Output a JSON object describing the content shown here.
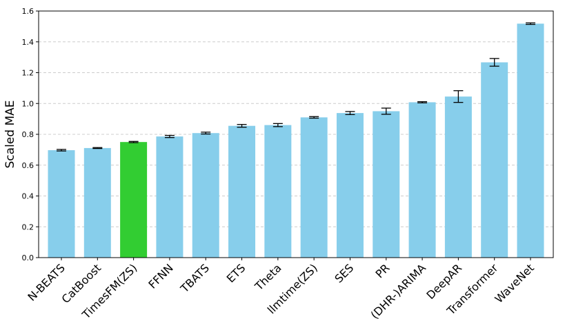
{
  "chart_data": {
    "type": "bar",
    "ylabel": "Scaled MAE",
    "xlabel": "",
    "ylim": [
      0.0,
      1.6
    ],
    "yticks": [
      "0.0",
      "0.2",
      "0.4",
      "0.6",
      "0.8",
      "1.0",
      "1.2",
      "1.4",
      "1.6"
    ],
    "grid": "y-dashed",
    "categories": [
      "N-BEATS",
      "CatBoost",
      "TimesFM(ZS)",
      "FFNN",
      "TBATS",
      "ETS",
      "Theta",
      "llmtime(ZS)",
      "SES",
      "PR",
      "(DHR-)ARIMA",
      "DeepAR",
      "Transformer",
      "WaveNet"
    ],
    "values": [
      0.697,
      0.711,
      0.75,
      0.786,
      0.808,
      0.855,
      0.86,
      0.91,
      0.938,
      0.95,
      1.008,
      1.045,
      1.267,
      1.518
    ],
    "errors": [
      0.005,
      0.003,
      0.004,
      0.007,
      0.006,
      0.009,
      0.01,
      0.005,
      0.01,
      0.02,
      0.004,
      0.038,
      0.025,
      0.005
    ],
    "colors": {
      "default": "#87CEEB",
      "highlight": "#32CD32",
      "highlight_category": "TimesFM(ZS)",
      "errorbar": "#000000",
      "grid": "#cccccc"
    }
  }
}
